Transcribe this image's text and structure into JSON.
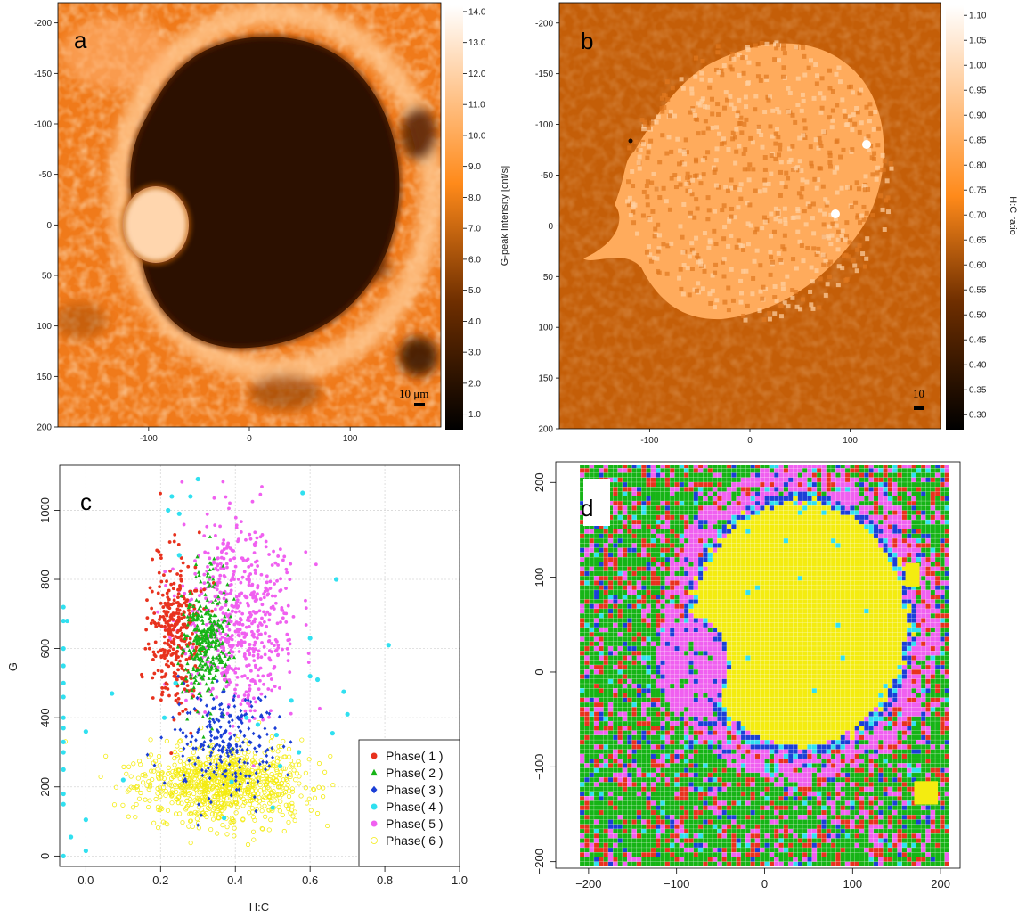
{
  "colors": {
    "phase1": "#e8321e",
    "phase2": "#16b416",
    "phase3": "#1b3fd6",
    "phase4": "#30e0f0",
    "phase5": "#f060f0",
    "phase6": "#f4ec10",
    "orange": "#ff8a1a",
    "dark": "#2a1200"
  },
  "panel_a": {
    "letter": "a",
    "scalebar": "10 μm",
    "colorbar_title": "G-peak Intensity [cnt/s]",
    "colorbar_ticks": [
      "14.0",
      "13.0",
      "12.0",
      "11.0",
      "10.0",
      "9.0",
      "8.0",
      "7.0",
      "6.0",
      "5.0",
      "4.0",
      "3.0",
      "2.0",
      "1.0"
    ],
    "y_ticks": [
      "-200",
      "-150",
      "-100",
      "-50",
      "0",
      "50",
      "100",
      "150",
      "200"
    ],
    "x_ticks": [
      "-100",
      "0",
      "100"
    ]
  },
  "panel_b": {
    "letter": "b",
    "scalebar": "10",
    "colorbar_title": "H:C ratio",
    "colorbar_ticks": [
      "1.10",
      "1.05",
      "1.00",
      "0.95",
      "0.90",
      "0.85",
      "0.80",
      "0.75",
      "0.70",
      "0.65",
      "0.60",
      "0.55",
      "0.50",
      "0.45",
      "0.40",
      "0.35",
      "0.30"
    ],
    "y_ticks": [
      "-200",
      "-150",
      "-100",
      "-50",
      "0",
      "50",
      "100",
      "150",
      "200"
    ],
    "x_ticks": [
      "-100",
      "0",
      "100"
    ]
  },
  "panel_c": {
    "letter": "c",
    "xlabel": "H:C",
    "ylabel": "G",
    "x_ticks": [
      "0.0",
      "0.2",
      "0.4",
      "0.6",
      "0.8",
      "1.0"
    ],
    "y_ticks": [
      "0",
      "200",
      "400",
      "600",
      "800",
      "1000"
    ],
    "legend": [
      "Phase( 1 )",
      "Phase( 2 )",
      "Phase( 3 )",
      "Phase( 4 )",
      "Phase( 5 )",
      "Phase( 6 )"
    ]
  },
  "panel_d": {
    "letter": "d",
    "x_ticks": [
      "−200",
      "−100",
      "0",
      "100",
      "200"
    ],
    "y_ticks": [
      "200",
      "100",
      "0",
      "−100",
      "−200"
    ]
  },
  "chart_data": [
    {
      "type": "heatmap",
      "panel": "a",
      "title": "",
      "xlabel": "",
      "ylabel": "",
      "xlim": [
        -190,
        190
      ],
      "ylim": [
        200,
        -220
      ],
      "colorbar": {
        "label": "G-peak Intensity [cnt/s]",
        "range": [
          0.5,
          14.2
        ]
      }
    },
    {
      "type": "heatmap",
      "panel": "b",
      "title": "",
      "xlabel": "",
      "ylabel": "",
      "xlim": [
        -190,
        190
      ],
      "ylim": [
        200,
        -220
      ],
      "colorbar": {
        "label": "H:C ratio",
        "range": [
          0.27,
          1.12
        ]
      }
    },
    {
      "type": "scatter",
      "panel": "c",
      "xlabel": "H:C",
      "ylabel": "G",
      "xlim": [
        -0.07,
        1.0
      ],
      "ylim": [
        -30,
        1130
      ],
      "grid": true,
      "legend_position": "bottom-right",
      "series": [
        {
          "name": "Phase( 1 )",
          "marker": "circle",
          "center": [
            0.24,
            650
          ],
          "spread": [
            0.035,
            110
          ],
          "count": 320
        },
        {
          "name": "Phase( 2 )",
          "marker": "triangle",
          "center": [
            0.32,
            620
          ],
          "spread": [
            0.03,
            100
          ],
          "count": 340
        },
        {
          "name": "Phase( 3 )",
          "marker": "diamond",
          "center": [
            0.37,
            330
          ],
          "spread": [
            0.06,
            80
          ],
          "count": 230
        },
        {
          "name": "Phase( 4 )",
          "marker": "circle",
          "points": [
            [
              -0.06,
              720
            ],
            [
              -0.06,
              680
            ],
            [
              -0.06,
              600
            ],
            [
              -0.06,
              550
            ],
            [
              -0.06,
              500
            ],
            [
              -0.06,
              460
            ],
            [
              -0.06,
              400
            ],
            [
              -0.06,
              370
            ],
            [
              -0.06,
              330
            ],
            [
              -0.06,
              300
            ],
            [
              -0.06,
              250
            ],
            [
              -0.06,
              180
            ],
            [
              -0.06,
              150
            ],
            [
              -0.06,
              0
            ],
            [
              -0.04,
              55
            ],
            [
              -0.05,
              680
            ],
            [
              0.0,
              360
            ],
            [
              0.0,
              105
            ],
            [
              0.0,
              15
            ],
            [
              0.07,
              470
            ],
            [
              0.1,
              220
            ],
            [
              0.23,
              1040
            ],
            [
              0.28,
              1040
            ],
            [
              0.3,
              1090
            ],
            [
              0.25,
              990
            ],
            [
              0.22,
              1000
            ],
            [
              0.25,
              870
            ],
            [
              0.58,
              1050
            ],
            [
              0.67,
              800
            ],
            [
              0.81,
              610
            ],
            [
              0.6,
              630
            ],
            [
              0.62,
              510
            ],
            [
              0.55,
              450
            ],
            [
              0.69,
              475
            ],
            [
              0.66,
              355
            ],
            [
              0.57,
              300
            ],
            [
              0.51,
              350
            ],
            [
              0.46,
              380
            ],
            [
              0.43,
              400
            ],
            [
              0.5,
              140
            ],
            [
              0.52,
              260
            ],
            [
              0.39,
              215
            ],
            [
              0.37,
              110
            ],
            [
              0.24,
              500
            ],
            [
              0.21,
              400
            ],
            [
              0.6,
              520
            ],
            [
              0.7,
              410
            ]
          ]
        },
        {
          "name": "Phase( 5 )",
          "marker": "circle",
          "center": [
            0.41,
            680
          ],
          "spread": [
            0.075,
            140
          ],
          "count": 600
        },
        {
          "name": "Phase( 6 )",
          "marker": "circle-open",
          "center": [
            0.37,
            210
          ],
          "spread": [
            0.11,
            55
          ],
          "count": 900
        }
      ]
    },
    {
      "type": "heatmap",
      "panel": "d",
      "xlim": [
        -210,
        210
      ],
      "ylim": [
        -205,
        220
      ],
      "categories": [
        "Phase( 1 )",
        "Phase( 2 )",
        "Phase( 3 )",
        "Phase( 4 )",
        "Phase( 5 )",
        "Phase( 6 )"
      ],
      "grid_cells": [
        78,
        86
      ]
    }
  ]
}
